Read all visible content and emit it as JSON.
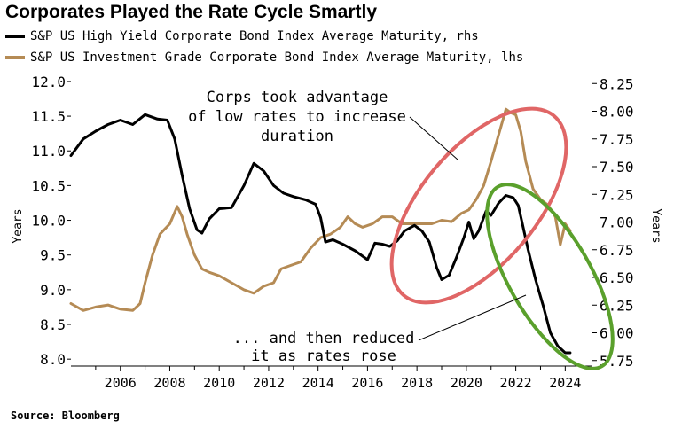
{
  "title": "Corporates Played the Rate Cycle Smartly",
  "source": "Source: Bloomberg",
  "colors": {
    "hy": "#000000",
    "ig": "#b58b55",
    "ellipse_red": "#e06666",
    "ellipse_green": "#5aa02c"
  },
  "annotations": {
    "top": [
      "Corps took advantage",
      "of low rates to increase",
      "duration"
    ],
    "bottom": [
      "... and then reduced",
      "it as rates rose"
    ]
  },
  "chart_data": {
    "type": "line",
    "title": "Corporates Played the Rate Cycle Smartly",
    "xlabel": "",
    "ylabel": "Years",
    "ylabel_right": "Years",
    "xlim": [
      2004.0,
      2025.1
    ],
    "ylim": [
      7.9,
      12.05
    ],
    "ylim_right": [
      5.7,
      8.3
    ],
    "x_ticks": [
      "2006",
      "2008",
      "2010",
      "2012",
      "2014",
      "2016",
      "2018",
      "2020",
      "2022",
      "2024"
    ],
    "y_ticks": [
      "8.0",
      "8.5",
      "9.0",
      "9.5",
      "10.0",
      "10.5",
      "11.0",
      "11.5",
      "12.0"
    ],
    "y_ticks_right": [
      "5.75",
      "6.00",
      "6.25",
      "6.50",
      "6.75",
      "7.00",
      "7.25",
      "7.50",
      "7.75",
      "8.00",
      "8.25"
    ],
    "grid": false,
    "legend_position": "top",
    "series": [
      {
        "name": "S&P US High Yield Corporate Bond Index Average Maturity, rhs",
        "axis": "right",
        "color": "#000000",
        "x": [
          2004.0,
          2004.5,
          2005.0,
          2005.5,
          2006.0,
          2006.5,
          2007.0,
          2007.5,
          2007.9,
          2008.2,
          2008.5,
          2008.8,
          2009.1,
          2009.3,
          2009.6,
          2010.0,
          2010.5,
          2011.0,
          2011.4,
          2011.8,
          2012.2,
          2012.6,
          2013.0,
          2013.5,
          2013.9,
          2014.1,
          2014.3,
          2014.6,
          2015.0,
          2015.5,
          2016.0,
          2016.3,
          2016.6,
          2016.9,
          2017.2,
          2017.5,
          2017.9,
          2018.2,
          2018.5,
          2018.8,
          2019.0,
          2019.3,
          2019.6,
          2019.9,
          2020.1,
          2020.3,
          2020.5,
          2020.8,
          2021.0,
          2021.3,
          2021.6,
          2021.9,
          2022.1,
          2022.3,
          2022.5,
          2022.8,
          2023.1,
          2023.4,
          2023.7,
          2024.0,
          2024.2
        ],
        "y": [
          7.6,
          7.75,
          7.82,
          7.88,
          7.92,
          7.88,
          7.97,
          7.93,
          7.92,
          7.75,
          7.42,
          7.12,
          6.93,
          6.9,
          7.03,
          7.12,
          7.13,
          7.33,
          7.53,
          7.46,
          7.33,
          7.26,
          7.23,
          7.2,
          7.16,
          7.04,
          6.82,
          6.84,
          6.8,
          6.74,
          6.66,
          6.81,
          6.8,
          6.78,
          6.83,
          6.92,
          6.97,
          6.92,
          6.82,
          6.59,
          6.48,
          6.52,
          6.68,
          6.86,
          7.0,
          6.85,
          6.92,
          7.1,
          7.06,
          7.17,
          7.24,
          7.22,
          7.15,
          6.95,
          6.75,
          6.48,
          6.25,
          6.0,
          5.88,
          5.82,
          5.82
        ]
      },
      {
        "name": "S&P US Investment Grade Corporate Bond Index Average Maturity, lhs",
        "axis": "left",
        "color": "#b58b55",
        "x": [
          2004.0,
          2004.5,
          2005.0,
          2005.5,
          2006.0,
          2006.5,
          2006.8,
          2007.0,
          2007.3,
          2007.6,
          2008.0,
          2008.3,
          2008.5,
          2008.7,
          2009.0,
          2009.3,
          2009.6,
          2010.0,
          2010.5,
          2011.0,
          2011.4,
          2011.8,
          2012.2,
          2012.5,
          2012.9,
          2013.3,
          2013.7,
          2014.1,
          2014.5,
          2014.9,
          2015.2,
          2015.5,
          2015.8,
          2016.2,
          2016.6,
          2017.0,
          2017.4,
          2017.8,
          2018.2,
          2018.6,
          2019.0,
          2019.4,
          2019.8,
          2020.1,
          2020.4,
          2020.7,
          2021.0,
          2021.2,
          2021.4,
          2021.6,
          2021.8,
          2022.0,
          2022.2,
          2022.4,
          2022.7,
          2023.0,
          2023.3,
          2023.6,
          2023.8,
          2024.0,
          2024.2
        ],
        "y": [
          8.8,
          8.7,
          8.75,
          8.78,
          8.72,
          8.7,
          8.8,
          9.1,
          9.5,
          9.8,
          9.95,
          10.2,
          10.05,
          9.8,
          9.5,
          9.3,
          9.25,
          9.2,
          9.1,
          9.0,
          8.95,
          9.05,
          9.1,
          9.3,
          9.35,
          9.4,
          9.6,
          9.75,
          9.8,
          9.9,
          10.05,
          9.95,
          9.9,
          9.95,
          10.05,
          10.05,
          9.95,
          9.95,
          9.95,
          9.95,
          10.0,
          9.98,
          10.1,
          10.15,
          10.3,
          10.5,
          10.85,
          11.1,
          11.35,
          11.6,
          11.55,
          11.52,
          11.28,
          10.85,
          10.45,
          10.3,
          10.22,
          10.05,
          9.65,
          9.95,
          9.85
        ]
      }
    ]
  }
}
